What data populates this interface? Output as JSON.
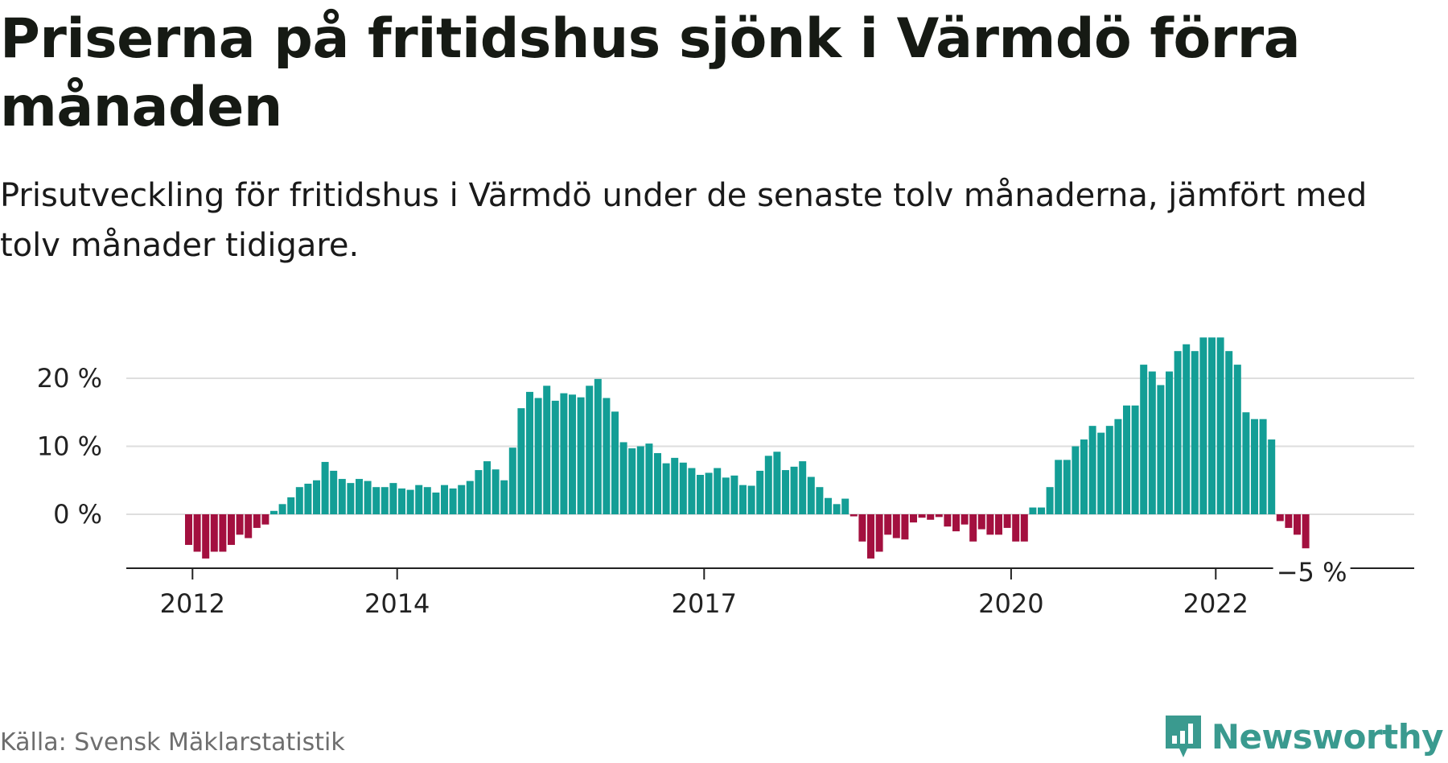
{
  "title": "Priserna på fritidshus sjönk i Värmdö förra månaden",
  "subtitle": "Prisutveckling för fritidshus i Värmdö under de senaste tolv månaderna, jämfört med tolv månader tidigare.",
  "source": "Källa: Svensk Mäklarstatistik",
  "brand": {
    "name": "Newsworthy",
    "icon": "newsworthy-logo-icon",
    "color": "#3a9a8f"
  },
  "colors": {
    "positive": "#139e96",
    "negative": "#a3103f",
    "grid": "#dedede",
    "axis": "#222222"
  },
  "chart_data": {
    "type": "bar",
    "x_start": "2012-01",
    "x_ticks": [
      "2012",
      "2014",
      "2017",
      "2020",
      "2022"
    ],
    "y_ticks": [
      "0 %",
      "10 %",
      "20 %"
    ],
    "y_unit": "%",
    "ylim": [
      -8,
      28
    ],
    "last_value_label": "−5 %",
    "grid": true,
    "values": [
      -4.5,
      -5.5,
      -6.5,
      -5.5,
      -5.5,
      -4.5,
      -3,
      -3.5,
      -2,
      -1.5,
      0.5,
      1.5,
      2.5,
      4,
      4.5,
      5,
      7.7,
      6.4,
      5.2,
      4.6,
      5.2,
      4.9,
      4,
      4,
      4.6,
      3.8,
      3.6,
      4.3,
      4,
      3.2,
      4.3,
      3.8,
      4.3,
      4.9,
      6.5,
      7.8,
      6.6,
      5,
      9.8,
      15.6,
      18,
      17.1,
      18.9,
      16.7,
      17.8,
      17.6,
      17.2,
      18.9,
      19.9,
      17.1,
      15.1,
      10.6,
      9.7,
      10,
      10.4,
      9,
      7.5,
      8.3,
      7.6,
      6.8,
      5.8,
      6.1,
      6.8,
      5.4,
      5.7,
      4.3,
      4.2,
      6.4,
      8.6,
      9.2,
      6.5,
      7,
      7.8,
      5.5,
      4,
      2.4,
      1.5,
      2.3,
      -0.3,
      -4,
      -6.5,
      -5.5,
      -3,
      -3.5,
      -3.7,
      -1.2,
      -0.5,
      -0.8,
      -0.4,
      -1.8,
      -2.5,
      -1.5,
      -4,
      -2.2,
      -3,
      -3,
      -2,
      -4,
      -4,
      1,
      1,
      4,
      8,
      8,
      10,
      11,
      13,
      12,
      13,
      14,
      16,
      16,
      22,
      21,
      19,
      21,
      24,
      25,
      24,
      26,
      26,
      26,
      24,
      22,
      15,
      14,
      14,
      11,
      -1,
      -2,
      -3,
      -5
    ]
  }
}
